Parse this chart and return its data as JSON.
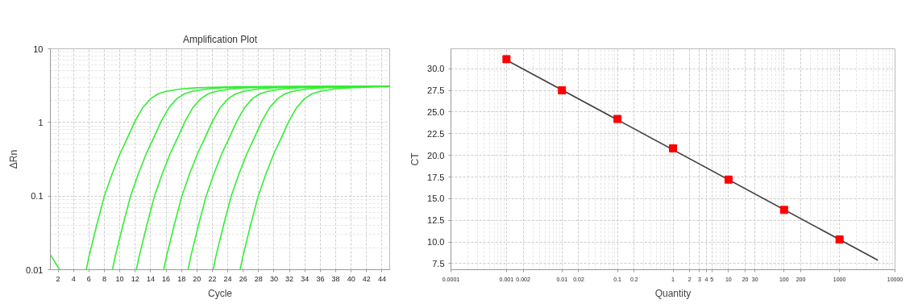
{
  "chart_data": [
    {
      "type": "line",
      "title": "Amplification Plot",
      "xlabel": "Cycle",
      "ylabel": "ΔRn",
      "log": "y",
      "grid": true,
      "xlim": [
        1,
        45
      ],
      "ylim": [
        0.01,
        10
      ],
      "xticks": [
        2,
        4,
        6,
        8,
        10,
        12,
        14,
        16,
        18,
        20,
        22,
        24,
        26,
        28,
        30,
        32,
        34,
        36,
        38,
        40,
        42,
        44
      ],
      "yticks": [
        0.01,
        0.1,
        1,
        10
      ],
      "series": [
        {
          "color": "#33ee33",
          "x": [
            1,
            2.2
          ],
          "values": [
            0.016,
            0.01
          ]
        },
        {
          "color": "#33ee33",
          "x": [
            5.65,
            6,
            7,
            8,
            9,
            10,
            11,
            12,
            13,
            14,
            15,
            16,
            18,
            20,
            25,
            45
          ],
          "values": [
            0.01,
            0.015,
            0.04,
            0.1,
            0.2,
            0.37,
            0.62,
            1.05,
            1.6,
            2.1,
            2.45,
            2.65,
            2.85,
            2.95,
            3.05,
            3.1
          ]
        },
        {
          "color": "#33ee33",
          "x": [
            9.05,
            9.4,
            10.4,
            11.4,
            12.4,
            13.4,
            14.4,
            15.4,
            16.4,
            17.4,
            18.4,
            19.4,
            21.4,
            23.4,
            28.4,
            45
          ],
          "values": [
            0.01,
            0.015,
            0.04,
            0.1,
            0.2,
            0.37,
            0.62,
            1.05,
            1.6,
            2.1,
            2.45,
            2.65,
            2.85,
            2.95,
            3.05,
            3.1
          ]
        },
        {
          "color": "#33ee33",
          "x": [
            12.15,
            12.5,
            13.5,
            14.5,
            15.5,
            16.5,
            17.5,
            18.5,
            19.5,
            20.5,
            21.5,
            22.5,
            24.5,
            26.5,
            31.5,
            45
          ],
          "values": [
            0.01,
            0.015,
            0.04,
            0.1,
            0.2,
            0.37,
            0.62,
            1.05,
            1.6,
            2.1,
            2.45,
            2.65,
            2.85,
            2.95,
            3.05,
            3.1
          ]
        },
        {
          "color": "#33ee33",
          "x": [
            15.7,
            16.05,
            17.05,
            18.05,
            19.05,
            20.05,
            21.05,
            22.05,
            23.05,
            24.05,
            25.05,
            26.05,
            28.05,
            30.05,
            35.05,
            45
          ],
          "values": [
            0.01,
            0.015,
            0.04,
            0.1,
            0.2,
            0.37,
            0.62,
            1.05,
            1.6,
            2.1,
            2.45,
            2.65,
            2.85,
            2.95,
            3.05,
            3.1
          ]
        },
        {
          "color": "#33ee33",
          "x": [
            18.85,
            19.2,
            20.2,
            21.2,
            22.2,
            23.2,
            24.2,
            25.2,
            26.2,
            27.2,
            28.2,
            29.2,
            31.2,
            33.2,
            38.2,
            45
          ],
          "values": [
            0.01,
            0.015,
            0.04,
            0.1,
            0.2,
            0.37,
            0.62,
            1.05,
            1.6,
            2.1,
            2.45,
            2.65,
            2.85,
            2.95,
            3.05,
            3.1
          ]
        },
        {
          "color": "#33ee33",
          "x": [
            22.1,
            22.45,
            23.45,
            24.45,
            25.45,
            26.45,
            27.45,
            28.45,
            29.45,
            30.45,
            31.45,
            32.45,
            34.45,
            36.45,
            41.45,
            45
          ],
          "values": [
            0.01,
            0.015,
            0.04,
            0.1,
            0.2,
            0.37,
            0.62,
            1.05,
            1.6,
            2.1,
            2.45,
            2.65,
            2.85,
            2.95,
            3.05,
            3.1
          ]
        },
        {
          "color": "#33ee33",
          "x": [
            25.6,
            25.95,
            26.95,
            27.95,
            28.95,
            29.95,
            30.95,
            31.95,
            32.95,
            33.95,
            34.95,
            35.95,
            37.95,
            39.95,
            45
          ],
          "values": [
            0.01,
            0.015,
            0.04,
            0.1,
            0.2,
            0.37,
            0.62,
            1.05,
            1.6,
            2.1,
            2.45,
            2.65,
            2.85,
            2.95,
            3.1
          ]
        }
      ]
    },
    {
      "type": "scatter",
      "xlabel": "Quantity",
      "ylabel": "CT",
      "log": "x",
      "grid": true,
      "xlim": [
        0.0001,
        10000
      ],
      "ylim": [
        6.8,
        32.3
      ],
      "xticks": [
        0.0001,
        0.001,
        0.002,
        0.01,
        0.02,
        0.1,
        0.2,
        1,
        2,
        3,
        4,
        5,
        10,
        20,
        30,
        100,
        200,
        1000,
        10000
      ],
      "yticks": [
        7.5,
        {
          "value": 10,
          "label": "10.0"
        },
        12.5,
        {
          "value": 15,
          "label": "15.0"
        },
        17.5,
        {
          "value": 20,
          "label": "20.0"
        },
        22.5,
        {
          "value": 25,
          "label": "25.0"
        },
        27.5,
        {
          "value": 30,
          "label": "30.0"
        }
      ],
      "series": [
        {
          "type": "line",
          "color": "#404040",
          "x": [
            0.001,
            4900
          ],
          "values": [
            31.0,
            7.9
          ]
        },
        {
          "type": "scatter",
          "marker": "square",
          "color": "#ff0000",
          "x": [
            0.001,
            0.01,
            0.1,
            1,
            10,
            100,
            1000
          ],
          "values": [
            31.1,
            27.5,
            24.2,
            20.8,
            17.2,
            13.7,
            10.3
          ]
        }
      ]
    }
  ]
}
